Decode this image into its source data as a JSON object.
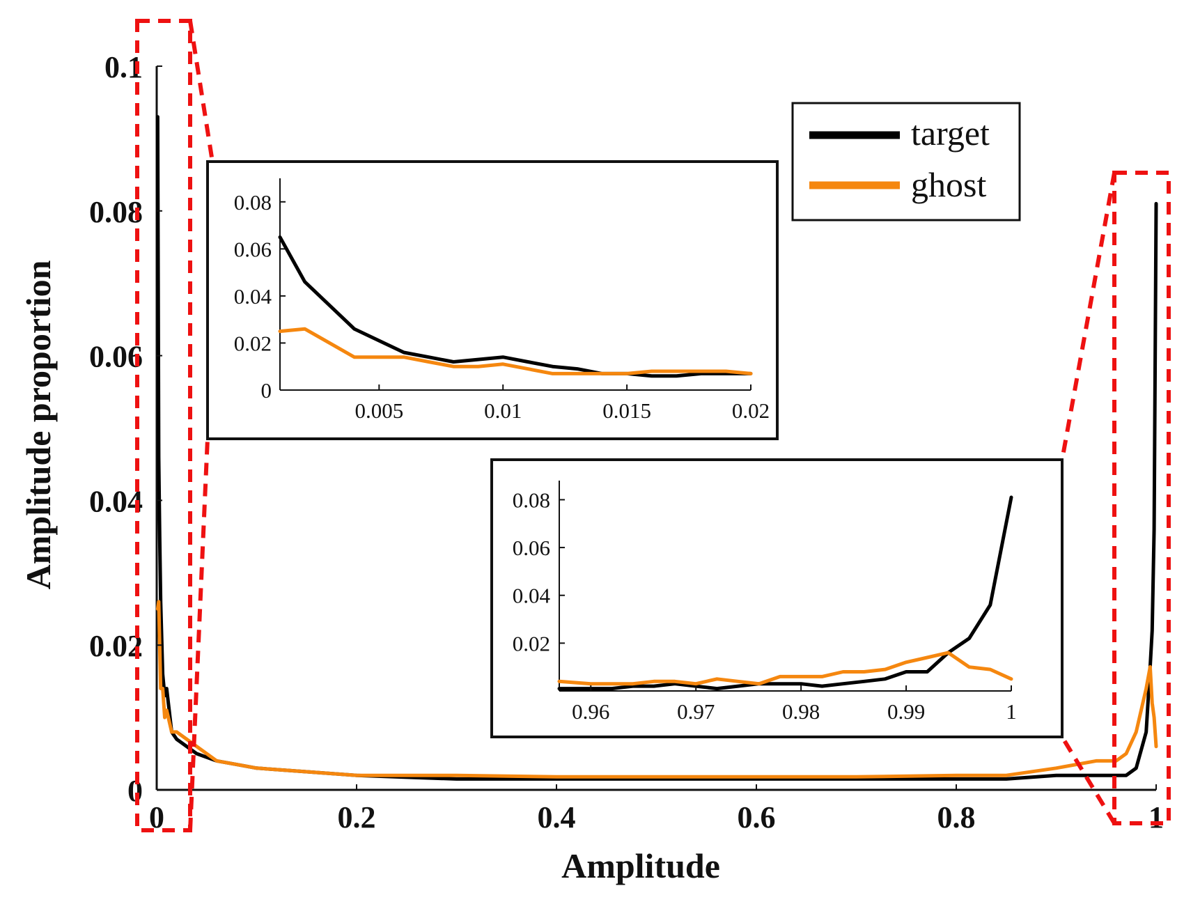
{
  "chart_data": [
    {
      "id": "main",
      "type": "line",
      "title": "",
      "xlabel": "Amplitude",
      "ylabel": "Amplitude proportion",
      "xlim": [
        0,
        1
      ],
      "ylim": [
        0,
        0.1
      ],
      "xticks": [
        0,
        0.2,
        0.4,
        0.6,
        0.8,
        1
      ],
      "xtick_labels": [
        "0",
        "0.2",
        "0.4",
        "0.6",
        "0.8",
        "1"
      ],
      "yticks": [
        0,
        0.02,
        0.04,
        0.06,
        0.08,
        0.1
      ],
      "ytick_labels": [
        "0",
        "0.02",
        "0.04",
        "0.06",
        "0.08",
        "0.1"
      ],
      "legend": {
        "position": "top-right",
        "entries": [
          {
            "label": "target",
            "color": "#000000"
          },
          {
            "label": "ghost",
            "color": "#f5870f"
          }
        ]
      },
      "series": [
        {
          "name": "target",
          "color": "#000000",
          "x": [
            0.001,
            0.002,
            0.003,
            0.004,
            0.006,
            0.008,
            0.01,
            0.015,
            0.02,
            0.03,
            0.04,
            0.06,
            0.08,
            0.1,
            0.15,
            0.2,
            0.3,
            0.4,
            0.5,
            0.6,
            0.7,
            0.8,
            0.85,
            0.9,
            0.94,
            0.96,
            0.97,
            0.98,
            0.99,
            0.994,
            0.996,
            0.998,
            1.0
          ],
          "y": [
            0.093,
            0.046,
            0.035,
            0.026,
            0.016,
            0.013,
            0.014,
            0.008,
            0.007,
            0.006,
            0.005,
            0.004,
            0.0035,
            0.003,
            0.0025,
            0.002,
            0.0015,
            0.0015,
            0.0015,
            0.0015,
            0.0015,
            0.0015,
            0.0015,
            0.002,
            0.002,
            0.002,
            0.002,
            0.003,
            0.008,
            0.017,
            0.022,
            0.036,
            0.081
          ]
        },
        {
          "name": "ghost",
          "color": "#f5870f",
          "x": [
            0.001,
            0.002,
            0.003,
            0.004,
            0.006,
            0.008,
            0.01,
            0.015,
            0.02,
            0.03,
            0.04,
            0.06,
            0.08,
            0.1,
            0.15,
            0.2,
            0.3,
            0.4,
            0.5,
            0.6,
            0.7,
            0.8,
            0.85,
            0.9,
            0.94,
            0.96,
            0.97,
            0.98,
            0.99,
            0.994,
            0.996,
            0.998,
            1.0
          ],
          "y": [
            0.025,
            0.026,
            0.02,
            0.014,
            0.014,
            0.01,
            0.011,
            0.008,
            0.008,
            0.007,
            0.006,
            0.004,
            0.0035,
            0.003,
            0.0025,
            0.002,
            0.002,
            0.0018,
            0.0018,
            0.0018,
            0.0018,
            0.002,
            0.002,
            0.003,
            0.004,
            0.004,
            0.005,
            0.008,
            0.014,
            0.017,
            0.012,
            0.01,
            0.006
          ]
        }
      ]
    },
    {
      "id": "inset-left",
      "type": "line",
      "title": "",
      "xlim": [
        0.001,
        0.02
      ],
      "ylim": [
        0,
        0.09
      ],
      "xticks": [
        0.005,
        0.01,
        0.015,
        0.02
      ],
      "xtick_labels": [
        "0.005",
        "0.01",
        "0.015",
        "0.02"
      ],
      "yticks": [
        0,
        0.02,
        0.04,
        0.06,
        0.08
      ],
      "ytick_labels": [
        "0",
        "0.02",
        "0.04",
        "0.06",
        "0.08"
      ],
      "series": [
        {
          "name": "target",
          "color": "#000000",
          "x": [
            0.001,
            0.002,
            0.003,
            0.004,
            0.005,
            0.006,
            0.007,
            0.008,
            0.009,
            0.01,
            0.011,
            0.012,
            0.013,
            0.014,
            0.015,
            0.016,
            0.017,
            0.018,
            0.019,
            0.02
          ],
          "y": [
            0.065,
            0.046,
            0.036,
            0.026,
            0.021,
            0.016,
            0.014,
            0.012,
            0.013,
            0.014,
            0.012,
            0.01,
            0.009,
            0.007,
            0.007,
            0.006,
            0.006,
            0.007,
            0.007,
            0.007
          ]
        },
        {
          "name": "ghost",
          "color": "#f5870f",
          "x": [
            0.001,
            0.002,
            0.003,
            0.004,
            0.005,
            0.006,
            0.007,
            0.008,
            0.009,
            0.01,
            0.011,
            0.012,
            0.013,
            0.014,
            0.015,
            0.016,
            0.017,
            0.018,
            0.019,
            0.02
          ],
          "y": [
            0.025,
            0.026,
            0.02,
            0.014,
            0.014,
            0.014,
            0.012,
            0.01,
            0.01,
            0.011,
            0.009,
            0.007,
            0.007,
            0.007,
            0.007,
            0.008,
            0.008,
            0.008,
            0.008,
            0.007
          ]
        }
      ]
    },
    {
      "id": "inset-right",
      "type": "line",
      "title": "",
      "xlim": [
        0.957,
        1.0
      ],
      "ylim": [
        0,
        0.088
      ],
      "xticks": [
        0.96,
        0.97,
        0.98,
        0.99,
        1
      ],
      "xtick_labels": [
        "0.96",
        "0.97",
        "0.98",
        "0.99",
        "1"
      ],
      "yticks": [
        0.02,
        0.04,
        0.06,
        0.08
      ],
      "ytick_labels": [
        "0.02",
        "0.04",
        "0.06",
        "0.08"
      ],
      "series": [
        {
          "name": "target",
          "color": "#000000",
          "x": [
            0.957,
            0.96,
            0.962,
            0.964,
            0.966,
            0.968,
            0.97,
            0.972,
            0.974,
            0.976,
            0.978,
            0.98,
            0.982,
            0.984,
            0.986,
            0.988,
            0.99,
            0.992,
            0.994,
            0.996,
            0.998,
            1.0
          ],
          "y": [
            0.001,
            0.001,
            0.001,
            0.002,
            0.002,
            0.003,
            0.002,
            0.001,
            0.002,
            0.003,
            0.003,
            0.003,
            0.002,
            0.003,
            0.004,
            0.005,
            0.008,
            0.008,
            0.016,
            0.022,
            0.036,
            0.081
          ]
        },
        {
          "name": "ghost",
          "color": "#f5870f",
          "x": [
            0.957,
            0.96,
            0.962,
            0.964,
            0.966,
            0.968,
            0.97,
            0.972,
            0.974,
            0.976,
            0.978,
            0.98,
            0.982,
            0.984,
            0.986,
            0.988,
            0.99,
            0.992,
            0.994,
            0.996,
            0.998,
            1.0
          ],
          "y": [
            0.004,
            0.003,
            0.003,
            0.003,
            0.004,
            0.004,
            0.003,
            0.005,
            0.004,
            0.003,
            0.006,
            0.006,
            0.006,
            0.008,
            0.008,
            0.009,
            0.012,
            0.014,
            0.016,
            0.01,
            0.009,
            0.005
          ]
        }
      ]
    }
  ]
}
